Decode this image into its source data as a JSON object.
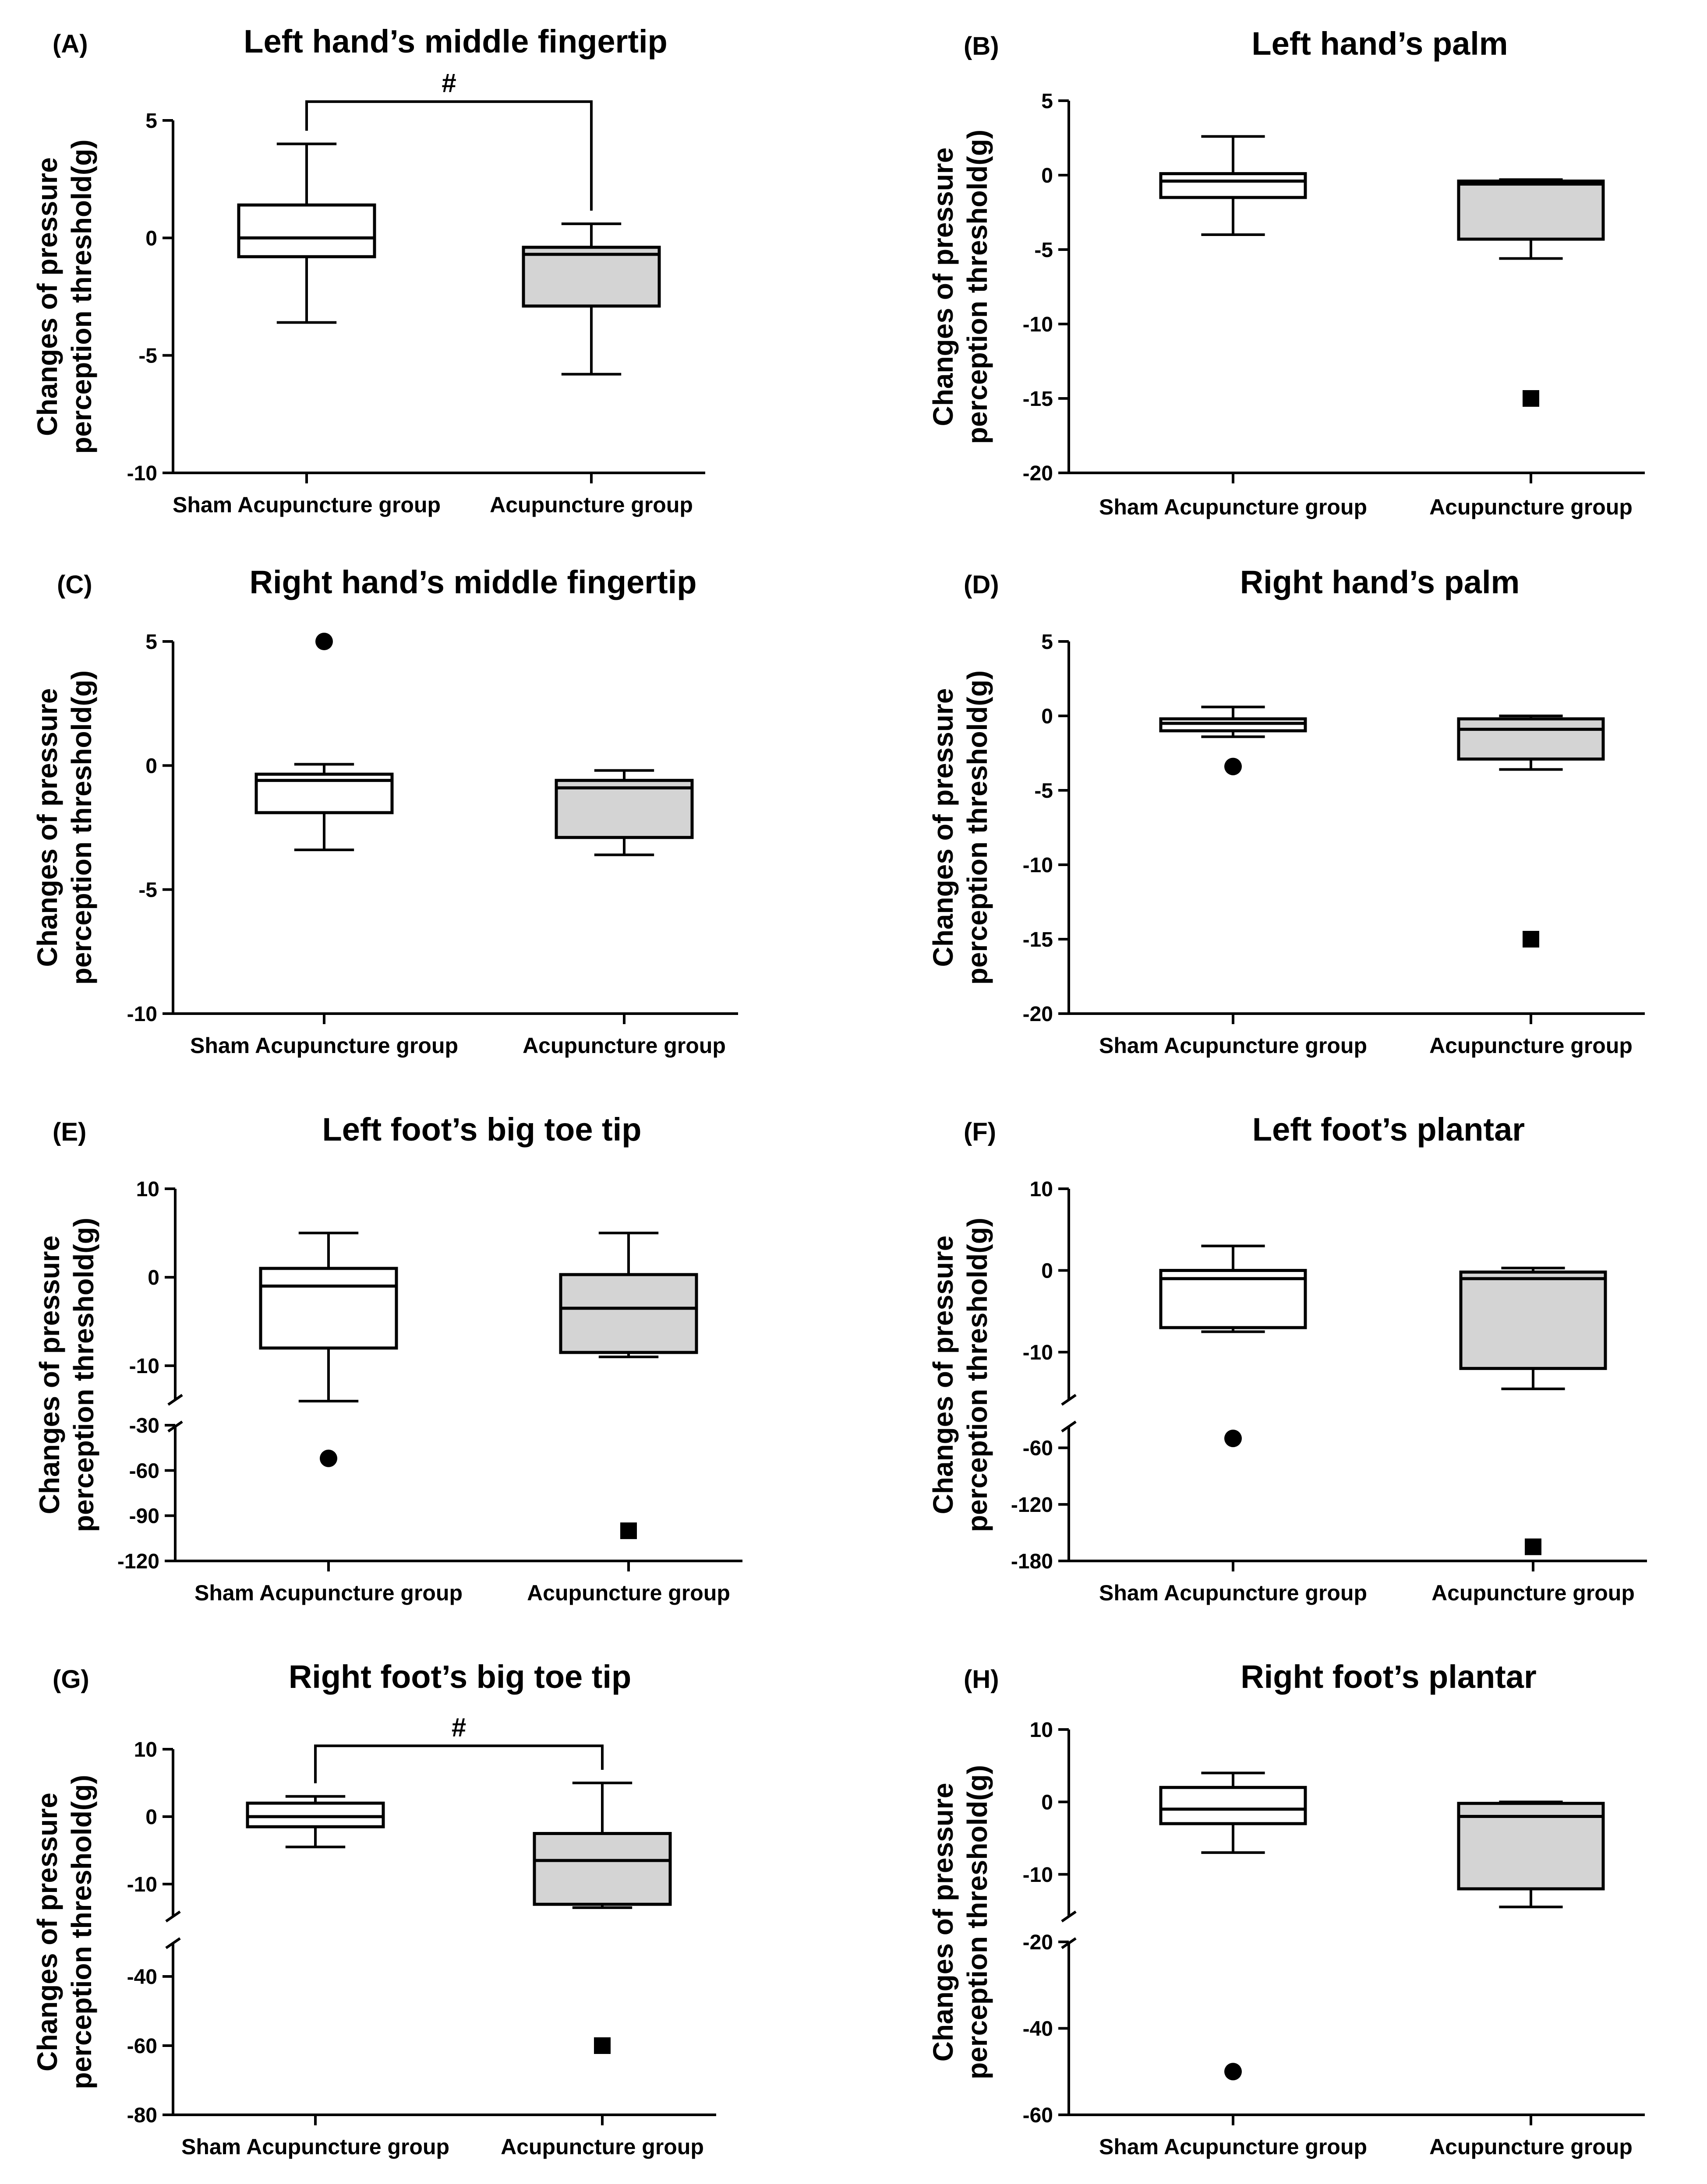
{
  "figure": {
    "y_label_line1": "Changes of pressure",
    "y_label_line2": "perception threshold(g)"
  },
  "chart_data": [
    {
      "type": "box",
      "panel": "(A)",
      "title": "Left hand’s middle fingertip",
      "ylabel": "Changes of pressure perception threshold(g)",
      "categories": [
        "Sham Acupuncture group",
        "Acupuncture group"
      ],
      "ylim": [
        -10,
        5
      ],
      "yticks": [
        5,
        0,
        -5,
        -10
      ],
      "groups": [
        {
          "name": "Sham Acupuncture group",
          "fill": "#ffffff",
          "min": -3.6,
          "q1": -0.8,
          "median": 0,
          "q3": 1.4,
          "max": 4.0,
          "outliers": []
        },
        {
          "name": "Acupuncture group",
          "fill": "#d4d4d4",
          "min": -5.8,
          "q1": -2.9,
          "median": -0.7,
          "q3": -0.4,
          "max": 0.6,
          "outliers": []
        }
      ],
      "significance": {
        "label": "#",
        "between": [
          0,
          1
        ],
        "y": 5.8
      }
    },
    {
      "type": "box",
      "panel": "(B)",
      "title": "Left hand’s palm",
      "ylabel": "Changes of pressure perception threshold(g)",
      "categories": [
        "Sham Acupuncture group",
        "Acupuncture group"
      ],
      "ylim": [
        -20,
        5
      ],
      "yticks": [
        5,
        0,
        -5,
        -10,
        -15,
        -20
      ],
      "groups": [
        {
          "name": "Sham Acupuncture group",
          "fill": "#ffffff",
          "min": -4.0,
          "q1": -1.5,
          "median": -0.4,
          "q3": 0.1,
          "max": 2.6,
          "outliers": []
        },
        {
          "name": "Acupuncture group",
          "fill": "#d4d4d4",
          "min": -5.6,
          "q1": -4.3,
          "median": -0.6,
          "q3": -0.4,
          "max": -0.3,
          "outliers": [
            {
              "value": -15,
              "shape": "square"
            }
          ]
        }
      ]
    },
    {
      "type": "box",
      "panel": "(C)",
      "title": "Right hand’s middle fingertip",
      "ylabel": "Changes of pressure perception threshold(g)",
      "categories": [
        "Sham Acupuncture group",
        "Acupuncture group"
      ],
      "ylim": [
        -10,
        5
      ],
      "yticks": [
        5,
        0,
        -5,
        -10
      ],
      "groups": [
        {
          "name": "Sham Acupuncture group",
          "fill": "#ffffff",
          "min": -3.4,
          "q1": -1.9,
          "median": -0.6,
          "q3": -0.35,
          "max": 0.05,
          "outliers": [
            {
              "value": 5,
              "shape": "circle"
            }
          ]
        },
        {
          "name": "Acupuncture group",
          "fill": "#d4d4d4",
          "min": -3.6,
          "q1": -2.9,
          "median": -0.9,
          "q3": -0.6,
          "max": -0.2,
          "outliers": []
        }
      ]
    },
    {
      "type": "box",
      "panel": "(D)",
      "title": "Right hand’s palm",
      "ylabel": "Changes of pressure perception threshold(g)",
      "categories": [
        "Sham Acupuncture group",
        "Acupuncture group"
      ],
      "ylim": [
        -20,
        5
      ],
      "yticks": [
        5,
        0,
        -5,
        -10,
        -15,
        -20
      ],
      "groups": [
        {
          "name": "Sham Acupuncture group",
          "fill": "#ffffff",
          "min": -1.4,
          "q1": -1.0,
          "median": -0.5,
          "q3": -0.2,
          "max": 0.6,
          "outliers": [
            {
              "value": -3.4,
              "shape": "circle"
            }
          ]
        },
        {
          "name": "Acupuncture group",
          "fill": "#d4d4d4",
          "min": -3.6,
          "q1": -2.9,
          "median": -0.9,
          "q3": -0.2,
          "max": 0.0,
          "outliers": [
            {
              "value": -15,
              "shape": "square"
            }
          ]
        }
      ]
    },
    {
      "type": "box",
      "panel": "(E)",
      "title": "Left foot’s big toe tip",
      "ylabel": "Changes of pressure perception threshold(g)",
      "categories": [
        "Sham Acupuncture group",
        "Acupuncture group"
      ],
      "axis_break": true,
      "upper_range": [
        -14,
        10
      ],
      "lower_range": [
        -120,
        -30
      ],
      "yticks_upper": [
        10,
        0,
        -10
      ],
      "yticks_lower": [
        -30,
        -60,
        -90,
        -120
      ],
      "groups": [
        {
          "name": "Sham Acupuncture group",
          "fill": "#ffffff",
          "min": -14,
          "q1": -8,
          "median": -1,
          "q3": 1,
          "max": 5,
          "outliers": [
            {
              "value": -52,
              "shape": "circle"
            }
          ]
        },
        {
          "name": "Acupuncture group",
          "fill": "#d4d4d4",
          "min": -9,
          "q1": -8.5,
          "median": -3.5,
          "q3": 0.3,
          "max": 5,
          "outliers": [
            {
              "value": -100,
              "shape": "square"
            }
          ]
        }
      ]
    },
    {
      "type": "box",
      "panel": "(F)",
      "title": "Left foot’s plantar",
      "ylabel": "Changes of pressure perception threshold(g)",
      "categories": [
        "Sham Acupuncture group",
        "Acupuncture group"
      ],
      "axis_break": true,
      "upper_range": [
        -16,
        10
      ],
      "lower_range": [
        -180,
        -36
      ],
      "yticks_upper": [
        10,
        0,
        -10
      ],
      "yticks_lower": [
        -60,
        -120,
        -180
      ],
      "groups": [
        {
          "name": "Sham Acupuncture group",
          "fill": "#ffffff",
          "min": -7.5,
          "q1": -7,
          "median": -1,
          "q3": 0,
          "max": 3,
          "outliers": [
            {
              "value": -50,
              "shape": "circle"
            }
          ]
        },
        {
          "name": "Acupuncture group",
          "fill": "#d4d4d4",
          "min": -14.5,
          "q1": -12,
          "median": -1,
          "q3": -0.2,
          "max": 0.3,
          "outliers": [
            {
              "value": -165,
              "shape": "square"
            }
          ]
        }
      ]
    },
    {
      "type": "box",
      "panel": "(G)",
      "title": "Right foot’s big toe tip",
      "ylabel": "Changes of pressure perception threshold(g)",
      "categories": [
        "Sham Acupuncture group",
        "Acupuncture group"
      ],
      "axis_break": true,
      "upper_range": [
        -15,
        10
      ],
      "lower_range": [
        -80,
        -30
      ],
      "yticks_upper": [
        10,
        0,
        -10
      ],
      "yticks_lower": [
        -40,
        -60,
        -80
      ],
      "groups": [
        {
          "name": "Sham Acupuncture group",
          "fill": "#ffffff",
          "min": -4.5,
          "q1": -1.5,
          "median": 0,
          "q3": 2,
          "max": 3,
          "outliers": []
        },
        {
          "name": "Acupuncture group",
          "fill": "#d4d4d4",
          "min": -13.5,
          "q1": -13,
          "median": -6.5,
          "q3": -2.5,
          "max": 5,
          "outliers": [
            {
              "value": -60,
              "shape": "square"
            }
          ]
        }
      ],
      "significance": {
        "label": "#",
        "between": [
          0,
          1
        ],
        "y": 10.5
      }
    },
    {
      "type": "box",
      "panel": "(H)",
      "title": "Right foot’s plantar",
      "ylabel": "Changes of pressure perception threshold(g)",
      "categories": [
        "Sham Acupuncture group",
        "Acupuncture group"
      ],
      "axis_break": true,
      "upper_range": [
        -16,
        10
      ],
      "lower_range": [
        -60,
        -20
      ],
      "yticks_upper": [
        10,
        0,
        -10
      ],
      "yticks_lower": [
        -20,
        -40,
        -60
      ],
      "groups": [
        {
          "name": "Sham Acupuncture group",
          "fill": "#ffffff",
          "min": -7,
          "q1": -3,
          "median": -1,
          "q3": 2,
          "max": 4,
          "outliers": [
            {
              "value": -50,
              "shape": "circle"
            }
          ]
        },
        {
          "name": "Acupuncture group",
          "fill": "#d4d4d4",
          "min": -14.5,
          "q1": -12,
          "median": -2,
          "q3": -0.2,
          "max": 0,
          "outliers": []
        }
      ]
    }
  ]
}
